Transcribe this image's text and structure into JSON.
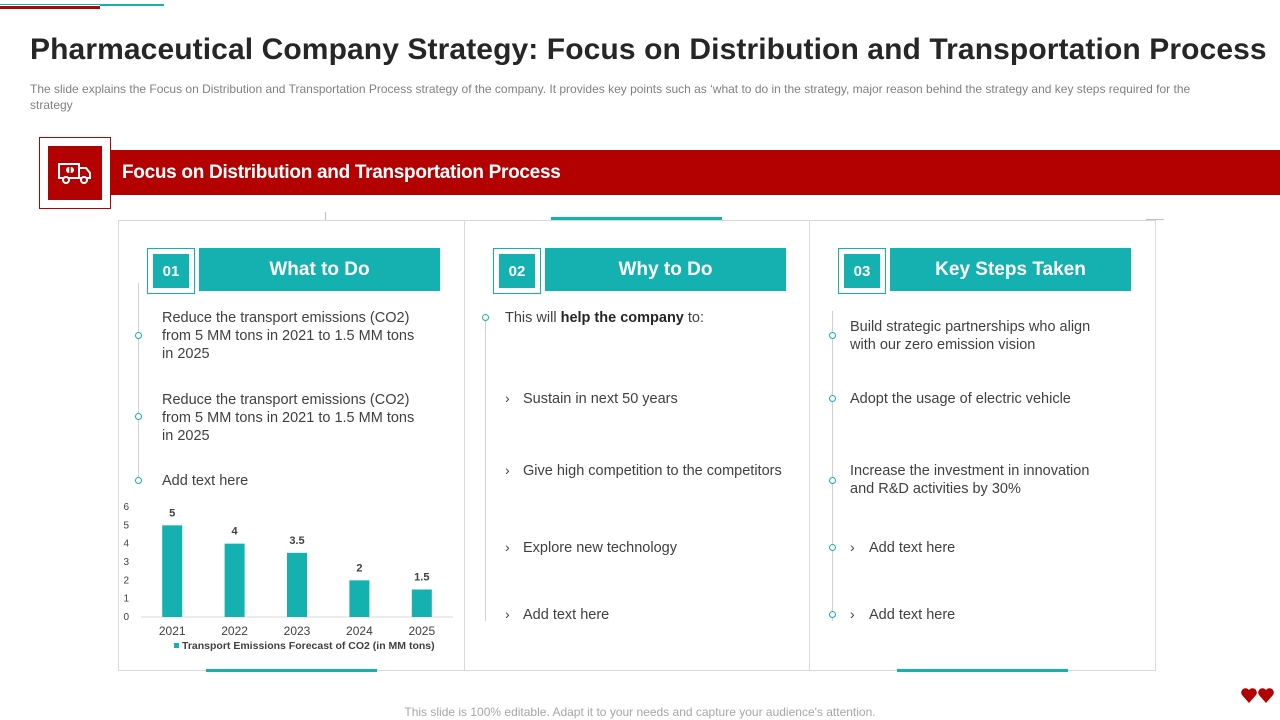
{
  "title": "Pharmaceutical Company Strategy: Focus on Distribution and Transportation Process",
  "subtitle": "The slide explains the Focus on Distribution and Transportation  Process strategy of the company. It provides  key points such as ‘what to do in the strategy, major reason behind the strategy and key steps required for the strategy",
  "banner": {
    "label": "Focus on Distribution and Transportation Process",
    "icon": "delivery-truck-icon"
  },
  "cards": [
    {
      "number": "01",
      "heading": "What to Do",
      "items": [
        "Reduce the transport emissions (CO2) from 5 MM tons in 2021 to 1.5 MM tons in 2025",
        "Reduce the transport emissions (CO2) from 5 MM tons in 2021 to 1.5 MM tons in 2025",
        "Add text here"
      ]
    },
    {
      "number": "02",
      "heading": "Why to Do",
      "intro_prefix": "This will ",
      "intro_bold": "help the company",
      "intro_suffix": " to:",
      "items": [
        "Sustain in next 50 years",
        "Give high competition to the competitors",
        "Explore new technology",
        "Add text here"
      ]
    },
    {
      "number": "03",
      "heading": "Key Steps Taken",
      "items": [
        "Build strategic partnerships who align with our zero emission vision",
        "Adopt the usage of electric vehicle",
        "Increase the investment in innovation and R&D activities by 30%",
        "Add text here",
        "Add text here"
      ]
    }
  ],
  "chart_data": {
    "type": "bar",
    "categories": [
      "2021",
      "2022",
      "2023",
      "2024",
      "2025"
    ],
    "values": [
      5,
      4,
      3.5,
      2,
      1.5
    ],
    "value_labels": [
      "5",
      "4",
      "3.5",
      "2",
      "1.5"
    ],
    "y_ticks": [
      "0",
      "1",
      "2",
      "3",
      "4",
      "5",
      "6"
    ],
    "ylim": [
      0,
      6
    ],
    "legend": "Transport Emissions Forecast of CO2 (in MM tons)",
    "title": "",
    "xlabel": "",
    "ylabel": "",
    "color": "#15b1b1"
  },
  "footer": "This slide is 100% editable. Adapt it to your needs and capture your audience's attention.",
  "colors": {
    "accent_red": "#b30000",
    "accent_teal": "#15b1b1"
  }
}
